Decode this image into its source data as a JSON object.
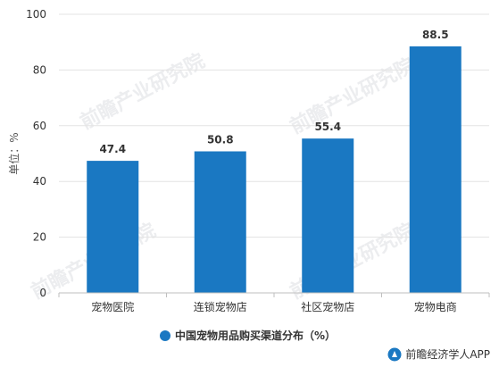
{
  "chart_data": {
    "type": "bar",
    "categories": [
      "宠物医院",
      "连锁宠物店",
      "社区宠物店",
      "宠物电商"
    ],
    "series": [
      {
        "name": "中国宠物用品购买渠道分布（%）",
        "values": [
          47.4,
          50.8,
          55.4,
          88.5
        ]
      }
    ],
    "ylabel": "单位：%",
    "ylim": [
      0,
      100
    ],
    "yticks": [
      0,
      20,
      40,
      60,
      80,
      100
    ],
    "grid": "horizontal",
    "legend": "bottom-center",
    "color": "#1a78c2"
  },
  "watermark": {
    "text": "前瞻产业研究院"
  },
  "source": {
    "text": "前瞻经济学人APP"
  }
}
